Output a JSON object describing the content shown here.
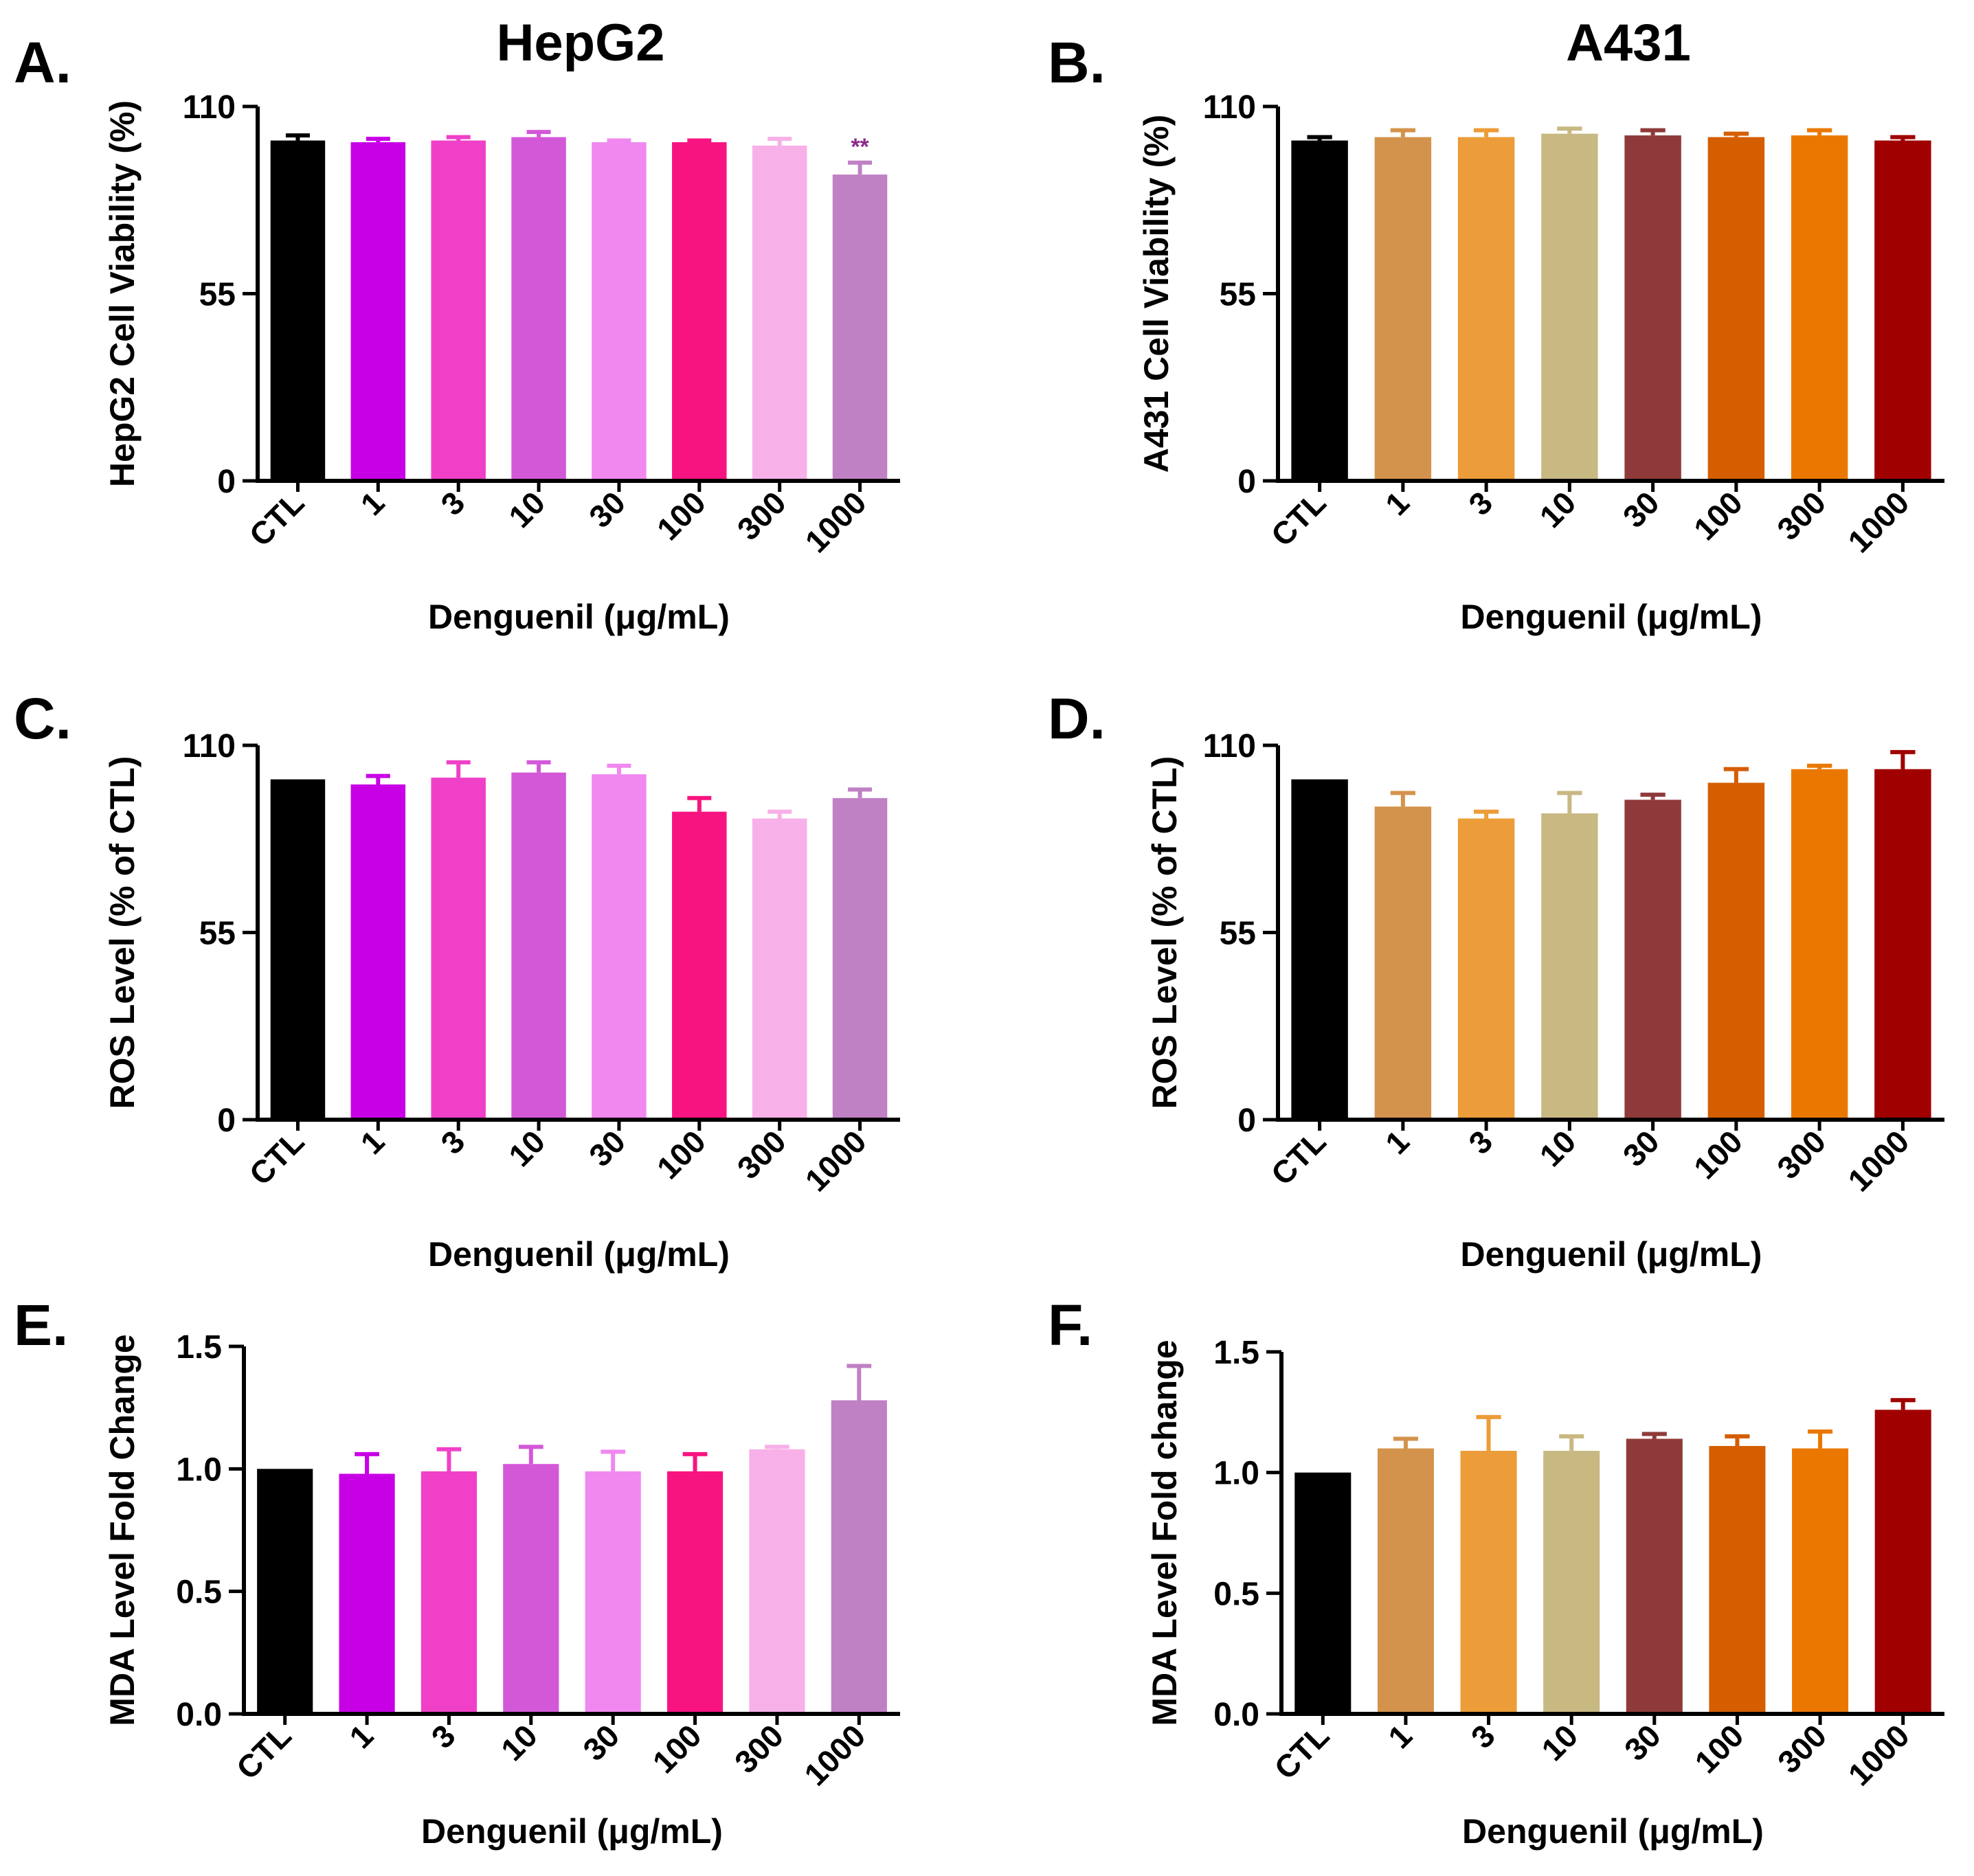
{
  "figure": {
    "column_titles": [
      "HepG2",
      "A431"
    ]
  },
  "chart_data": [
    {
      "type": "bar",
      "panel": "A.",
      "title": "HepG2",
      "xlabel": "Denguenil (μg/mL)",
      "ylabel": "HepG2 Cell Viability (%)",
      "ylim": [
        0,
        110
      ],
      "yticks": [
        "0",
        "55",
        "110"
      ],
      "ytick_values": [
        0,
        55,
        110
      ],
      "categories": [
        "CTL",
        "1",
        "3",
        "10",
        "30",
        "100",
        "300",
        "1000"
      ],
      "values": [
        100,
        99.5,
        100,
        101,
        99.5,
        99.5,
        98.5,
        90
      ],
      "errors": [
        1.5,
        1,
        1,
        1.5,
        0.5,
        0.5,
        2,
        3.5
      ],
      "colors": [
        "#000000",
        "#c800e6",
        "#f040c8",
        "#d358d8",
        "#f088f0",
        "#f81480",
        "#f8b0e8",
        "#c080c4"
      ],
      "annotations": [
        {
          "category": "1000",
          "text": "**",
          "color": "#8e2a8e"
        }
      ]
    },
    {
      "type": "bar",
      "panel": "B.",
      "title": "A431",
      "xlabel": "Denguenil (μg/mL)",
      "ylabel": "A431 Cell Viability (%)",
      "ylim": [
        0,
        110
      ],
      "yticks": [
        "0",
        "55",
        "110"
      ],
      "ytick_values": [
        0,
        55,
        110
      ],
      "categories": [
        "CTL",
        "1",
        "3",
        "10",
        "30",
        "100",
        "300",
        "1000"
      ],
      "values": [
        100,
        101,
        101,
        102,
        101.5,
        101,
        101.5,
        100
      ],
      "errors": [
        1,
        2,
        2,
        1.5,
        1.5,
        1,
        1.5,
        1
      ],
      "colors": [
        "#000000",
        "#d4934c",
        "#ec9c38",
        "#c8b882",
        "#8f3a3a",
        "#d45e00",
        "#ea7800",
        "#a00000"
      ],
      "annotations": []
    },
    {
      "type": "bar",
      "panel": "C.",
      "title": "",
      "xlabel": "Denguenil (μg/mL)",
      "ylabel": "ROS Level (% of CTL)",
      "ylim": [
        0,
        110
      ],
      "yticks": [
        "0",
        "55",
        "110"
      ],
      "ytick_values": [
        0,
        55,
        110
      ],
      "categories": [
        "CTL",
        "1",
        "3",
        "10",
        "30",
        "100",
        "300",
        "1000"
      ],
      "values": [
        100,
        98.5,
        100.5,
        102,
        101.5,
        90.5,
        88.5,
        94.5
      ],
      "errors": [
        0,
        2.5,
        4.5,
        3,
        2.5,
        4,
        2,
        2.5
      ],
      "colors": [
        "#000000",
        "#c800e6",
        "#f040c8",
        "#d358d8",
        "#f088f0",
        "#f81480",
        "#f8b0e8",
        "#c080c4"
      ],
      "annotations": []
    },
    {
      "type": "bar",
      "panel": "D.",
      "title": "",
      "xlabel": "Denguenil (μg/mL)",
      "ylabel": "ROS Level (% of CTL)",
      "ylim": [
        0,
        110
      ],
      "yticks": [
        "0",
        "55",
        "110"
      ],
      "ytick_values": [
        0,
        55,
        110
      ],
      "categories": [
        "CTL",
        "1",
        "3",
        "10",
        "30",
        "100",
        "300",
        "1000"
      ],
      "values": [
        100,
        92,
        88.5,
        90,
        94,
        99,
        103,
        103
      ],
      "errors": [
        0,
        4,
        2,
        6,
        1.5,
        4,
        1,
        5
      ],
      "colors": [
        "#000000",
        "#d4934c",
        "#ec9c38",
        "#c8b882",
        "#8f3a3a",
        "#d45e00",
        "#ea7800",
        "#a00000"
      ],
      "annotations": []
    },
    {
      "type": "bar",
      "panel": "E.",
      "title": "",
      "xlabel": "Denguenil (μg/mL)",
      "ylabel": "MDA Level Fold Change",
      "ylim": [
        0,
        1.5
      ],
      "yticks": [
        "0.0",
        "0.5",
        "1.0",
        "1.5"
      ],
      "ytick_values": [
        0,
        0.5,
        1.0,
        1.5
      ],
      "categories": [
        "CTL",
        "1",
        "3",
        "10",
        "30",
        "100",
        "300",
        "1000"
      ],
      "values": [
        1.0,
        0.98,
        0.99,
        1.02,
        0.99,
        0.99,
        1.08,
        1.28
      ],
      "errors": [
        0,
        0.08,
        0.09,
        0.07,
        0.08,
        0.07,
        0.01,
        0.14
      ],
      "colors": [
        "#000000",
        "#c800e6",
        "#f040c8",
        "#d358d8",
        "#f088f0",
        "#f81480",
        "#f8b0e8",
        "#c080c4"
      ],
      "annotations": []
    },
    {
      "type": "bar",
      "panel": "F.",
      "title": "",
      "xlabel": "Denguenil (μg/mL)",
      "ylabel": "MDA Level Fold change",
      "ylim": [
        0,
        1.5
      ],
      "yticks": [
        "0.0",
        "0.5",
        "1.0",
        "1.5"
      ],
      "ytick_values": [
        0,
        0.5,
        1.0,
        1.5
      ],
      "categories": [
        "CTL",
        "1",
        "3",
        "10",
        "30",
        "100",
        "300",
        "1000"
      ],
      "values": [
        1.0,
        1.1,
        1.09,
        1.09,
        1.14,
        1.11,
        1.1,
        1.26
      ],
      "errors": [
        0,
        0.04,
        0.14,
        0.06,
        0.02,
        0.04,
        0.07,
        0.04
      ],
      "colors": [
        "#000000",
        "#d4934c",
        "#ec9c38",
        "#c8b882",
        "#8f3a3a",
        "#d45e00",
        "#ea7800",
        "#a00000"
      ],
      "annotations": []
    }
  ]
}
